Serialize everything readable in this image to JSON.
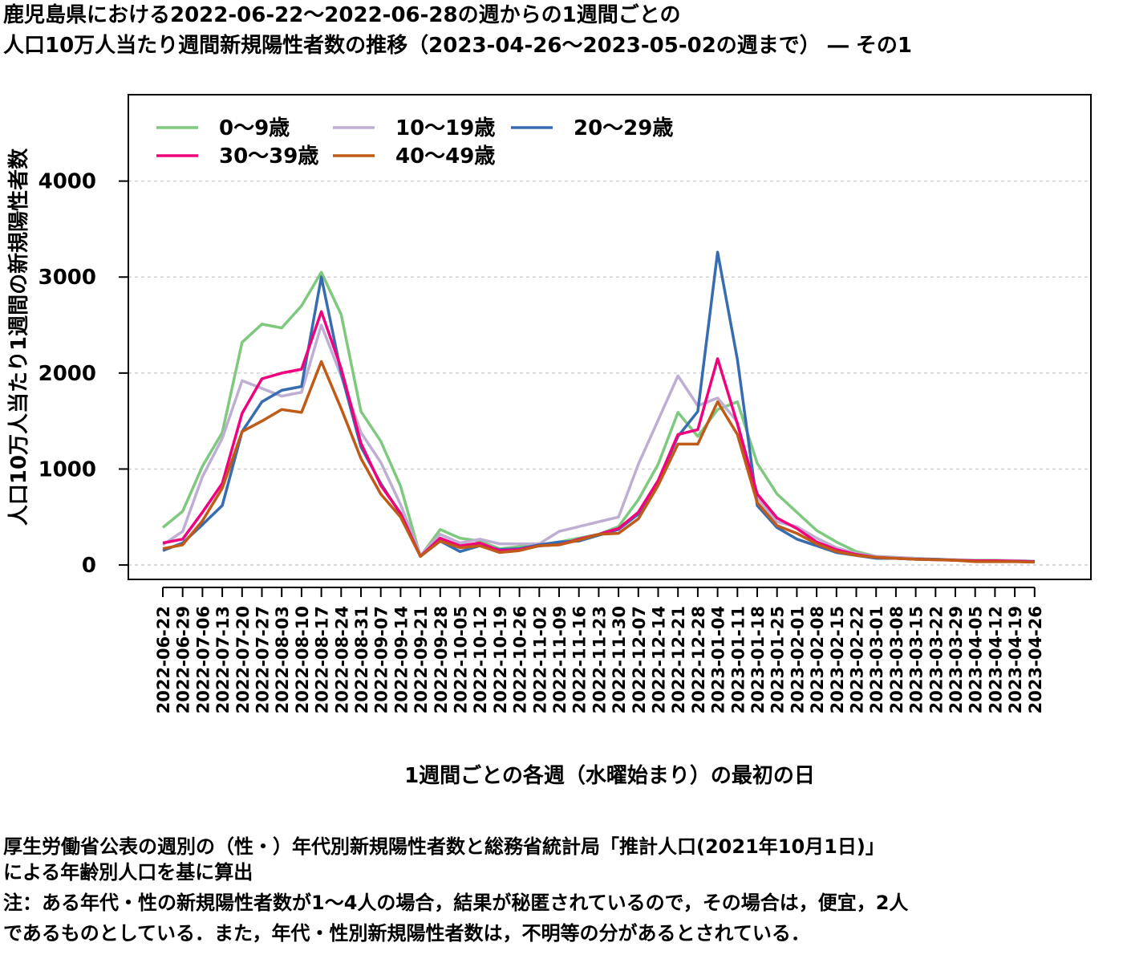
{
  "title": {
    "line1": "鹿児島県における2022-06-22～2022-06-28の週からの1週間ごとの",
    "line2": "人口10万人当たり週間新規陽性者数の推移（2023-04-26～2023-05-02の週まで） ― その1"
  },
  "notes": {
    "line1": "厚生労働省公表の週別の（性・）年代別新規陽性者数と総務省統計局「推計人口(2021年10月1日)」",
    "line2": "による年齢別人口を基に算出",
    "line3": "注：ある年代・性の新規陽性者数が1～4人の場合，結果が秘匿されているので，その場合は，便宜，2人",
    "line4": "であるものとしている．また，年代・性別新規陽性者数は，不明等の分があるとされている．"
  },
  "chart_data": {
    "type": "line",
    "xlabel": "1週間ごとの各週（水曜始まり）の最初の日",
    "ylabel": "人口10万人当たり1週間の新規陽性者数",
    "ylim": [
      -150,
      4900
    ],
    "yticks": [
      0,
      1000,
      2000,
      3000,
      4000
    ],
    "grid": true,
    "legend_position": "top-left",
    "categories": [
      "2022-06-22",
      "2022-06-29",
      "2022-07-06",
      "2022-07-13",
      "2022-07-20",
      "2022-07-27",
      "2022-08-03",
      "2022-08-10",
      "2022-08-17",
      "2022-08-24",
      "2022-08-31",
      "2022-09-07",
      "2022-09-14",
      "2022-09-21",
      "2022-09-28",
      "2022-10-05",
      "2022-10-12",
      "2022-10-19",
      "2022-10-26",
      "2022-11-02",
      "2022-11-09",
      "2022-11-16",
      "2022-11-23",
      "2022-11-30",
      "2022-12-07",
      "2022-12-14",
      "2022-12-21",
      "2022-12-28",
      "2023-01-04",
      "2023-01-11",
      "2023-01-18",
      "2023-01-25",
      "2023-02-01",
      "2023-02-08",
      "2023-02-15",
      "2023-02-22",
      "2023-03-01",
      "2023-03-08",
      "2023-03-15",
      "2023-03-22",
      "2023-03-29",
      "2023-04-05",
      "2023-04-12",
      "2023-04-19",
      "2023-04-26"
    ],
    "series": [
      {
        "name": "0～9歳",
        "color": "#7fc97f",
        "values": [
          390,
          560,
          1030,
          1380,
          2320,
          2510,
          2470,
          2700,
          3050,
          2610,
          1600,
          1290,
          820,
          90,
          370,
          280,
          250,
          170,
          190,
          200,
          240,
          280,
          320,
          400,
          680,
          1050,
          1590,
          1340,
          1620,
          1700,
          1060,
          740,
          550,
          360,
          240,
          140,
          90,
          80,
          70,
          60,
          55,
          50,
          50,
          45,
          40
        ]
      },
      {
        "name": "10～19歳",
        "color": "#beaed4",
        "values": [
          210,
          350,
          920,
          1320,
          1920,
          1840,
          1760,
          1800,
          2500,
          1970,
          1380,
          1070,
          630,
          100,
          320,
          230,
          270,
          220,
          220,
          220,
          350,
          400,
          450,
          500,
          1050,
          1510,
          1970,
          1660,
          1740,
          1490,
          700,
          450,
          400,
          280,
          180,
          120,
          90,
          80,
          70,
          60,
          55,
          45,
          45,
          45,
          40
        ]
      },
      {
        "name": "20～29歳",
        "color": "#386cb0",
        "values": [
          150,
          230,
          420,
          620,
          1390,
          1700,
          1820,
          1860,
          3000,
          2000,
          1230,
          850,
          530,
          90,
          250,
          140,
          200,
          160,
          170,
          210,
          240,
          250,
          310,
          370,
          530,
          870,
          1340,
          1600,
          3260,
          2140,
          620,
          390,
          270,
          200,
          130,
          100,
          70,
          70,
          60,
          60,
          50,
          40,
          40,
          40,
          35
        ]
      },
      {
        "name": "30～39歳",
        "color": "#f0027f",
        "values": [
          230,
          270,
          550,
          850,
          1580,
          1940,
          2000,
          2040,
          2640,
          2050,
          1270,
          830,
          540,
          90,
          280,
          200,
          230,
          150,
          160,
          200,
          210,
          270,
          320,
          380,
          550,
          880,
          1360,
          1410,
          2150,
          1470,
          740,
          490,
          380,
          240,
          160,
          110,
          80,
          70,
          60,
          55,
          50,
          45,
          45,
          40,
          35
        ]
      },
      {
        "name": "40～49歳",
        "color": "#bf5b17",
        "values": [
          170,
          210,
          460,
          800,
          1390,
          1500,
          1620,
          1590,
          2120,
          1630,
          1110,
          740,
          500,
          90,
          250,
          180,
          200,
          130,
          150,
          200,
          210,
          260,
          320,
          330,
          480,
          830,
          1260,
          1260,
          1700,
          1360,
          650,
          410,
          330,
          220,
          140,
          100,
          80,
          70,
          60,
          55,
          50,
          35,
          35,
          35,
          30
        ]
      }
    ]
  }
}
